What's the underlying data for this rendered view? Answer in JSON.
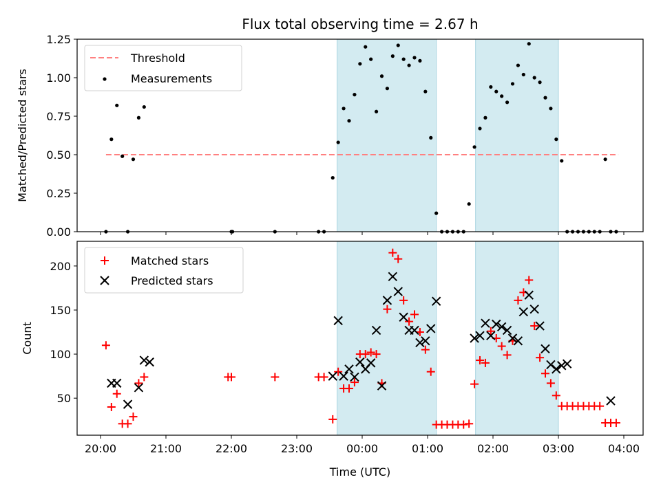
{
  "chart_data": {
    "type": "scatter",
    "title": "Flux total observing time = 2.67 h",
    "xlabel": "Time (UTC)",
    "x_ticks": [
      "20:00",
      "21:00",
      "22:00",
      "23:00",
      "00:00",
      "01:00",
      "02:00",
      "03:00",
      "04:00"
    ],
    "shaded_regions": [
      [
        "23:37",
        "01:08"
      ],
      [
        "01:44",
        "03:00"
      ]
    ],
    "colors": {
      "threshold": "#ff8080",
      "shade": "#d3ebf1",
      "shade_edge": "#a8d4e0",
      "matched": "#ff0000",
      "predicted": "#000000",
      "measurements": "#000000"
    },
    "top": {
      "ylabel": "Matched/Predicted stars",
      "ylim": [
        0,
        1.25
      ],
      "y_ticks": [
        "0.00",
        "0.25",
        "0.50",
        "0.75",
        "1.00",
        "1.25"
      ],
      "legend": [
        "Threshold",
        "Measurements"
      ],
      "threshold": {
        "value": 0.5,
        "x_range": [
          "20:05",
          "03:55"
        ]
      },
      "measurements": [
        [
          "20:05",
          0.0
        ],
        [
          "20:10",
          0.6
        ],
        [
          "20:15",
          0.82
        ],
        [
          "20:20",
          0.49
        ],
        [
          "20:25",
          0.0
        ],
        [
          "20:30",
          0.47
        ],
        [
          "20:35",
          0.74
        ],
        [
          "20:40",
          0.81
        ],
        [
          "22:00",
          0.0
        ],
        [
          "22:01",
          0.0
        ],
        [
          "22:40",
          0.0
        ],
        [
          "23:20",
          0.0
        ],
        [
          "23:25",
          0.0
        ],
        [
          "23:33",
          0.35
        ],
        [
          "23:38",
          0.58
        ],
        [
          "23:43",
          0.8
        ],
        [
          "23:48",
          0.72
        ],
        [
          "23:53",
          0.89
        ],
        [
          "23:58",
          1.09
        ],
        [
          "00:03",
          1.2
        ],
        [
          "00:08",
          1.12
        ],
        [
          "00:13",
          0.78
        ],
        [
          "00:18",
          1.01
        ],
        [
          "00:23",
          0.93
        ],
        [
          "00:28",
          1.14
        ],
        [
          "00:33",
          1.21
        ],
        [
          "00:38",
          1.12
        ],
        [
          "00:43",
          1.08
        ],
        [
          "00:48",
          1.13
        ],
        [
          "00:53",
          1.11
        ],
        [
          "00:58",
          0.91
        ],
        [
          "01:03",
          0.61
        ],
        [
          "01:08",
          0.12
        ],
        [
          "01:13",
          0.0
        ],
        [
          "01:18",
          0.0
        ],
        [
          "01:23",
          0.0
        ],
        [
          "01:28",
          0.0
        ],
        [
          "01:33",
          0.0
        ],
        [
          "01:38",
          0.18
        ],
        [
          "01:43",
          0.55
        ],
        [
          "01:48",
          0.67
        ],
        [
          "01:53",
          0.74
        ],
        [
          "01:58",
          0.94
        ],
        [
          "02:03",
          0.91
        ],
        [
          "02:08",
          0.88
        ],
        [
          "02:13",
          0.84
        ],
        [
          "02:18",
          0.96
        ],
        [
          "02:23",
          1.08
        ],
        [
          "02:28",
          1.02
        ],
        [
          "02:33",
          1.22
        ],
        [
          "02:38",
          1.0
        ],
        [
          "02:43",
          0.97
        ],
        [
          "02:48",
          0.87
        ],
        [
          "02:53",
          0.8
        ],
        [
          "02:58",
          0.6
        ],
        [
          "03:03",
          0.46
        ],
        [
          "03:08",
          0.0
        ],
        [
          "03:13",
          0.0
        ],
        [
          "03:18",
          0.0
        ],
        [
          "03:23",
          0.0
        ],
        [
          "03:28",
          0.0
        ],
        [
          "03:33",
          0.0
        ],
        [
          "03:38",
          0.0
        ],
        [
          "03:43",
          0.47
        ],
        [
          "03:48",
          0.0
        ],
        [
          "03:53",
          0.0
        ]
      ]
    },
    "bottom": {
      "ylabel": "Count",
      "ylim": [
        8,
        228
      ],
      "y_ticks": [
        50,
        100,
        150,
        200
      ],
      "legend": [
        "Matched stars",
        "Predicted stars"
      ],
      "matched": [
        [
          "20:05",
          110
        ],
        [
          "20:10",
          40
        ],
        [
          "20:15",
          55
        ],
        [
          "20:20",
          21
        ],
        [
          "20:25",
          21
        ],
        [
          "20:30",
          29
        ],
        [
          "20:35",
          67
        ],
        [
          "20:40",
          74
        ],
        [
          "21:57",
          74
        ],
        [
          "22:00",
          74
        ],
        [
          "22:40",
          74
        ],
        [
          "23:20",
          74
        ],
        [
          "23:25",
          74
        ],
        [
          "23:33",
          26
        ],
        [
          "23:38",
          80
        ],
        [
          "23:43",
          61
        ],
        [
          "23:48",
          61
        ],
        [
          "23:53",
          68
        ],
        [
          "23:58",
          100
        ],
        [
          "00:03",
          100
        ],
        [
          "00:08",
          102
        ],
        [
          "00:13",
          100
        ],
        [
          "00:18",
          67
        ],
        [
          "00:23",
          151
        ],
        [
          "00:28",
          215
        ],
        [
          "00:33",
          208
        ],
        [
          "00:38",
          161
        ],
        [
          "00:43",
          137
        ],
        [
          "00:48",
          145
        ],
        [
          "00:53",
          125
        ],
        [
          "00:58",
          105
        ],
        [
          "01:03",
          80
        ],
        [
          "01:08",
          20
        ],
        [
          "01:13",
          20
        ],
        [
          "01:18",
          20
        ],
        [
          "01:23",
          20
        ],
        [
          "01:28",
          20
        ],
        [
          "01:33",
          20
        ],
        [
          "01:38",
          21
        ],
        [
          "01:43",
          66
        ],
        [
          "01:48",
          93
        ],
        [
          "01:53",
          90
        ],
        [
          "01:58",
          126
        ],
        [
          "02:03",
          118
        ],
        [
          "02:08",
          109
        ],
        [
          "02:13",
          99
        ],
        [
          "02:18",
          115
        ],
        [
          "02:23",
          161
        ],
        [
          "02:28",
          170
        ],
        [
          "02:33",
          184
        ],
        [
          "02:38",
          132
        ],
        [
          "02:43",
          96
        ],
        [
          "02:48",
          78
        ],
        [
          "02:53",
          67
        ],
        [
          "02:58",
          53
        ],
        [
          "03:03",
          41
        ],
        [
          "03:08",
          41
        ],
        [
          "03:13",
          41
        ],
        [
          "03:18",
          41
        ],
        [
          "03:23",
          41
        ],
        [
          "03:28",
          41
        ],
        [
          "03:33",
          41
        ],
        [
          "03:38",
          41
        ],
        [
          "03:43",
          22
        ],
        [
          "03:48",
          22
        ],
        [
          "03:53",
          22
        ]
      ],
      "predicted": [
        [
          "20:10",
          67
        ],
        [
          "20:15",
          67
        ],
        [
          "20:25",
          43
        ],
        [
          "20:35",
          62
        ],
        [
          "20:40",
          93
        ],
        [
          "20:45",
          91
        ],
        [
          "23:33",
          75
        ],
        [
          "23:38",
          138
        ],
        [
          "23:43",
          75
        ],
        [
          "23:48",
          83
        ],
        [
          "23:53",
          74
        ],
        [
          "23:58",
          91
        ],
        [
          "00:03",
          83
        ],
        [
          "00:08",
          90
        ],
        [
          "00:13",
          127
        ],
        [
          "00:18",
          64
        ],
        [
          "00:23",
          161
        ],
        [
          "00:28",
          188
        ],
        [
          "00:33",
          171
        ],
        [
          "00:38",
          142
        ],
        [
          "00:43",
          127
        ],
        [
          "00:48",
          127
        ],
        [
          "00:53",
          113
        ],
        [
          "00:58",
          115
        ],
        [
          "01:03",
          129
        ],
        [
          "01:08",
          160
        ],
        [
          "01:43",
          118
        ],
        [
          "01:48",
          121
        ],
        [
          "01:53",
          135
        ],
        [
          "01:58",
          121
        ],
        [
          "02:03",
          134
        ],
        [
          "02:08",
          131
        ],
        [
          "02:13",
          127
        ],
        [
          "02:18",
          118
        ],
        [
          "02:23",
          115
        ],
        [
          "02:28",
          148
        ],
        [
          "02:33",
          167
        ],
        [
          "02:38",
          151
        ],
        [
          "02:43",
          132
        ],
        [
          "02:48",
          106
        ],
        [
          "02:53",
          88
        ],
        [
          "02:58",
          83
        ],
        [
          "03:03",
          87
        ],
        [
          "03:08",
          89
        ],
        [
          "03:48",
          47
        ]
      ]
    }
  }
}
